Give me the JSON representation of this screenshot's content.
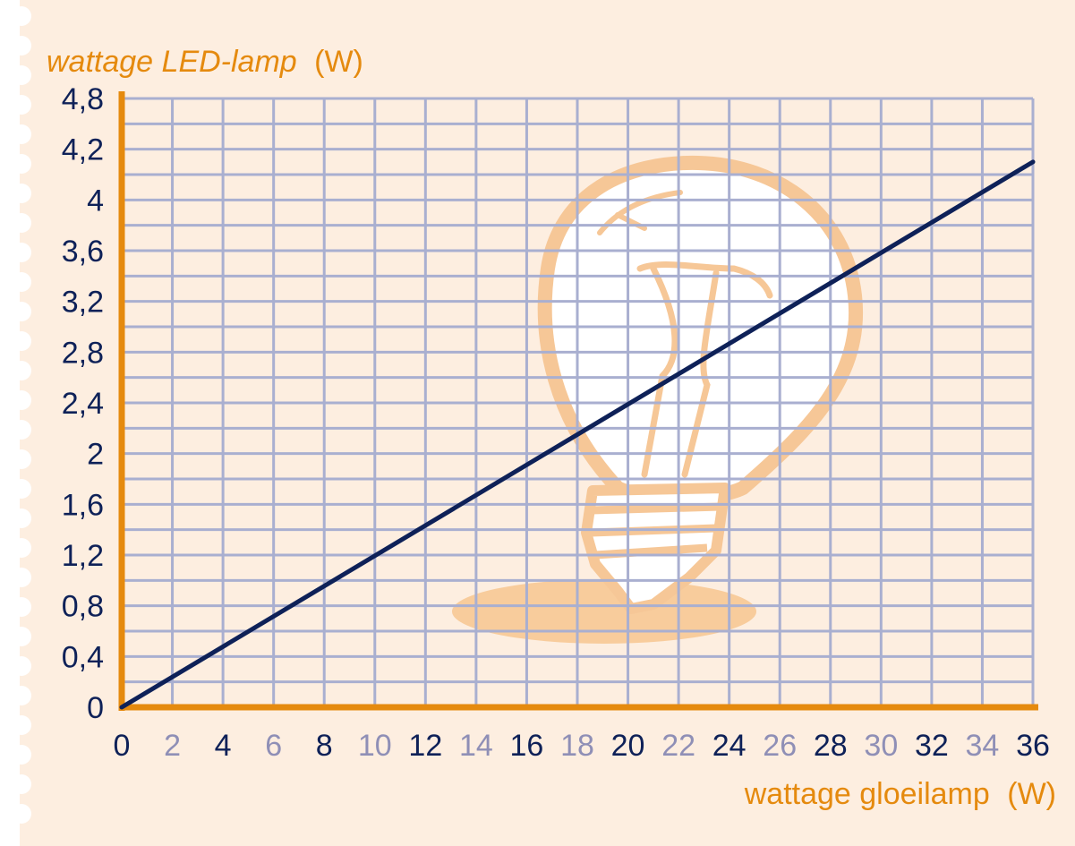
{
  "chart_data": {
    "type": "line",
    "title": "",
    "ylabel": {
      "main": "wattage LED-lamp",
      "unit": "(W)"
    },
    "xlabel": {
      "main": "wattage gloeilamp",
      "unit": "(W)"
    },
    "xlim": [
      0,
      36
    ],
    "ylim": [
      0,
      4.8
    ],
    "x_ticks": [
      "0",
      "2",
      "4",
      "6",
      "8",
      "10",
      "12",
      "14",
      "16",
      "18",
      "20",
      "22",
      "24",
      "26",
      "28",
      "30",
      "32",
      "34",
      "36"
    ],
    "y_ticks": [
      "0",
      "0,4",
      "0,8",
      "1,2",
      "1,6",
      "2",
      "2,4",
      "2,8",
      "3,2",
      "3,6",
      "4",
      "4,2",
      "4,8"
    ],
    "grid": true,
    "series": [
      {
        "x": [
          0,
          36
        ],
        "y": [
          0,
          4.3
        ]
      }
    ]
  },
  "colors": {
    "background": "#fdeee0",
    "paper_edge": "#ffffff",
    "axis": "#e58a0e",
    "axis_title": "#e58a0e",
    "grid": "#a9afd0",
    "line": "#0e2158",
    "tick_dark": "#0e2158",
    "tick_light": "#8f8fb6",
    "bulb_outline": "#f6c797",
    "bulb_fill": "#ffffff",
    "bulb_shadow": "#f8cc9c"
  },
  "decoration": "light-bulb-sketch"
}
